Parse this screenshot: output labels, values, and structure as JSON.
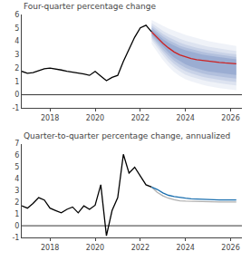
{
  "chart_data": [
    {
      "type": "line",
      "title": "Four-quarter percentage change",
      "xlim": [
        2016.75,
        2026.5
      ],
      "xticks": [
        2018,
        2020,
        2022,
        2024,
        2026
      ],
      "ylim": [
        -1,
        6
      ],
      "yticks": [
        -1,
        0,
        1,
        2,
        3,
        4,
        5,
        6
      ],
      "grid": false,
      "hline": {
        "y": 0,
        "color": "#000000"
      },
      "bands": {
        "x": [
          2022.5,
          2022.75,
          2023.0,
          2023.25,
          2023.5,
          2023.75,
          2024.0,
          2024.25,
          2024.5,
          2024.75,
          2025.0,
          2025.25,
          2025.5,
          2025.75,
          2026.0,
          2026.25
        ],
        "color": "#6680bb",
        "lower": [
          [
            3.8,
            3.2,
            2.6,
            2.1,
            1.7,
            1.4,
            1.15,
            1.0,
            0.85,
            0.75,
            0.65,
            0.55,
            0.5,
            0.45,
            0.4,
            0.35
          ],
          [
            4.1,
            3.5,
            2.95,
            2.45,
            2.05,
            1.75,
            1.5,
            1.35,
            1.2,
            1.1,
            1.0,
            0.92,
            0.86,
            0.8,
            0.75,
            0.7
          ],
          [
            4.25,
            3.7,
            3.18,
            2.7,
            2.3,
            2.0,
            1.76,
            1.6,
            1.45,
            1.35,
            1.25,
            1.17,
            1.11,
            1.05,
            1.0,
            0.95
          ],
          [
            4.4,
            3.88,
            3.38,
            2.93,
            2.55,
            2.25,
            2.02,
            1.85,
            1.7,
            1.6,
            1.5,
            1.42,
            1.36,
            1.3,
            1.25,
            1.2
          ],
          [
            4.52,
            4.05,
            3.57,
            3.15,
            2.78,
            2.5,
            2.27,
            2.1,
            1.96,
            1.85,
            1.75,
            1.68,
            1.62,
            1.56,
            1.52,
            1.47
          ]
        ],
        "upper": [
          [
            5.6,
            5.35,
            5.15,
            4.95,
            4.78,
            4.62,
            4.48,
            4.35,
            4.23,
            4.12,
            4.02,
            3.93,
            3.85,
            3.78,
            3.72,
            3.65
          ],
          [
            5.35,
            5.05,
            4.78,
            4.55,
            4.35,
            4.18,
            4.03,
            3.9,
            3.79,
            3.69,
            3.6,
            3.52,
            3.45,
            3.38,
            3.32,
            3.27
          ],
          [
            5.18,
            4.85,
            4.55,
            4.3,
            4.08,
            3.9,
            3.75,
            3.62,
            3.51,
            3.42,
            3.33,
            3.25,
            3.18,
            3.12,
            3.07,
            3.02
          ],
          [
            5.03,
            4.67,
            4.35,
            4.08,
            3.85,
            3.67,
            3.52,
            3.4,
            3.3,
            3.2,
            3.12,
            3.05,
            2.98,
            2.92,
            2.87,
            2.82
          ],
          [
            4.88,
            4.5,
            4.16,
            3.88,
            3.65,
            3.47,
            3.32,
            3.2,
            3.1,
            3.01,
            2.93,
            2.86,
            2.8,
            2.74,
            2.69,
            2.65
          ]
        ]
      },
      "series": [
        {
          "color": "#000000",
          "x": [
            2016.75,
            2017.0,
            2017.25,
            2017.5,
            2017.75,
            2018.0,
            2018.25,
            2018.5,
            2018.75,
            2019.0,
            2019.25,
            2019.5,
            2019.75,
            2020.0,
            2020.25,
            2020.5,
            2020.75,
            2021.0,
            2021.25,
            2021.5,
            2021.75,
            2022.0,
            2022.25,
            2022.5
          ],
          "values": [
            1.75,
            1.6,
            1.65,
            1.8,
            1.95,
            2.0,
            1.95,
            1.85,
            1.75,
            1.7,
            1.65,
            1.55,
            1.45,
            1.75,
            1.4,
            1.05,
            1.3,
            1.45,
            2.5,
            3.4,
            4.3,
            5.0,
            5.2,
            4.7
          ]
        },
        {
          "color": "#cc2222",
          "x": [
            2022.5,
            2022.75,
            2023.0,
            2023.25,
            2023.5,
            2023.75,
            2024.0,
            2024.25,
            2024.5,
            2024.75,
            2025.0,
            2025.25,
            2025.5,
            2025.75,
            2026.0,
            2026.25
          ],
          "values": [
            4.7,
            4.25,
            3.85,
            3.5,
            3.2,
            2.98,
            2.82,
            2.7,
            2.62,
            2.56,
            2.5,
            2.46,
            2.42,
            2.38,
            2.35,
            2.32
          ]
        }
      ]
    },
    {
      "type": "line",
      "title": "Quarter-to-quarter percentage change, annualized",
      "xlim": [
        2016.75,
        2026.5
      ],
      "xticks": [
        2018,
        2020,
        2022,
        2024,
        2026
      ],
      "ylim": [
        -1,
        7
      ],
      "yticks": [
        -1,
        0,
        1,
        2,
        3,
        4,
        5,
        6,
        7
      ],
      "grid": false,
      "hline": {
        "y": 0,
        "color": "#000000"
      },
      "series": [
        {
          "color": "#000000",
          "x": [
            2016.75,
            2017.0,
            2017.25,
            2017.5,
            2017.75,
            2018.0,
            2018.25,
            2018.5,
            2018.75,
            2019.0,
            2019.25,
            2019.5,
            2019.75,
            2020.0,
            2020.25,
            2020.5,
            2020.75,
            2021.0,
            2021.25,
            2021.5,
            2021.75,
            2022.0,
            2022.25,
            2022.5
          ],
          "values": [
            1.7,
            1.5,
            1.9,
            2.4,
            2.2,
            1.5,
            1.3,
            1.1,
            1.4,
            1.6,
            1.1,
            1.7,
            1.4,
            1.75,
            3.5,
            -0.85,
            1.3,
            2.4,
            6.1,
            4.5,
            5.0,
            4.3,
            3.5,
            3.3
          ]
        },
        {
          "color": "#b0b0b0",
          "x": [
            2022.5,
            2022.75,
            2023.0,
            2023.25,
            2023.5,
            2023.75,
            2024.0,
            2024.25,
            2024.5,
            2024.75,
            2025.0,
            2025.25,
            2025.5,
            2025.75,
            2026.0,
            2026.25
          ],
          "values": [
            3.3,
            2.85,
            2.55,
            2.35,
            2.22,
            2.13,
            2.1,
            2.08,
            2.06,
            2.05,
            2.04,
            2.04,
            2.03,
            2.03,
            2.03,
            2.03
          ]
        },
        {
          "color": "#1a6faf",
          "x": [
            2022.5,
            2022.75,
            2023.0,
            2023.25,
            2023.5,
            2023.75,
            2024.0,
            2024.25,
            2024.5,
            2024.75,
            2025.0,
            2025.25,
            2025.5,
            2025.75,
            2026.0,
            2026.25
          ],
          "values": [
            3.3,
            3.1,
            2.8,
            2.6,
            2.5,
            2.4,
            2.35,
            2.3,
            2.27,
            2.25,
            2.23,
            2.22,
            2.21,
            2.2,
            2.2,
            2.2
          ]
        }
      ]
    }
  ]
}
